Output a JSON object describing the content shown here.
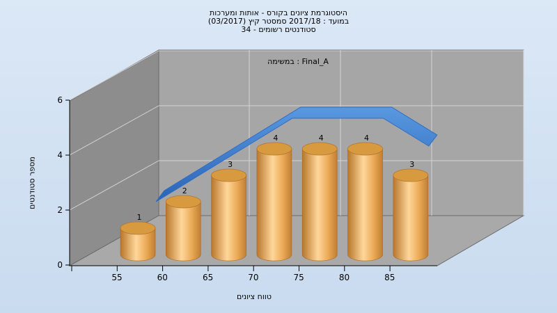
{
  "chart_data": {
    "type": "bar",
    "title_lines": [
      "היסטוגרמת ציונים בקורס - אותות ומערכות",
      "במועד : 2017/18  סמסטר קיץ  (03/2017)",
      "סטודנטים רשומים - 34"
    ],
    "subtitle": "במשימה : Final_A",
    "xlabel": "טווח ציונים",
    "ylabel": "מספר סטודנטים",
    "categories": [
      "55",
      "60",
      "65",
      "70",
      "75",
      "80",
      "85"
    ],
    "values": [
      1,
      2,
      3,
      4,
      4,
      4,
      3
    ],
    "y_ticks": [
      0,
      2,
      4,
      6
    ],
    "ylim": [
      0,
      6
    ],
    "trend_line": "smooth blue ribbon following the bar values",
    "colors": {
      "bar": "#e8a850",
      "bar_top": "#d89a3e",
      "trend": "#3a78c8",
      "wall": "#a4a4a4",
      "floor": "#a6a6a6",
      "side": "#8a8a8a"
    },
    "grid": true
  }
}
